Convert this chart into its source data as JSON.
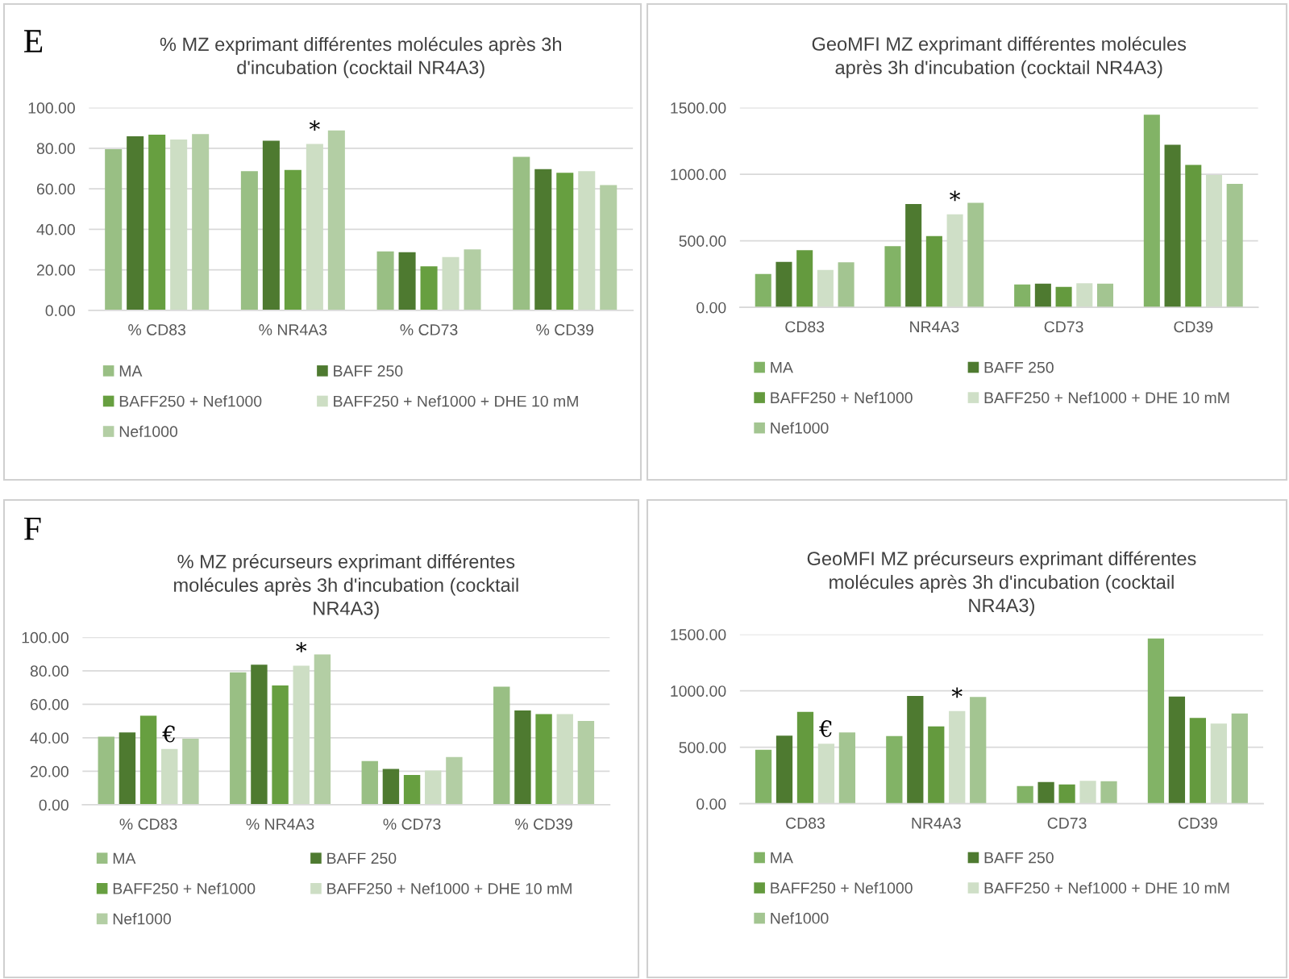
{
  "chart_data": [
    {
      "type": "bar",
      "title": "% MZ exprimant différentes molécules après 3h\nd'incubation (cocktail NR4A3)",
      "categories": [
        "% CD83",
        "% NR4A3",
        "% CD73",
        "% CD39"
      ],
      "series": [
        {
          "name": "MA",
          "color": "#99bf84",
          "values": [
            79.5,
            68.7,
            29.1,
            75.7
          ]
        },
        {
          "name": "BAFF 250",
          "color": "#4e7a30",
          "values": [
            85.9,
            83.7,
            28.7,
            69.7
          ]
        },
        {
          "name": "BAFF250 + Nef1000",
          "color": "#679f40",
          "values": [
            86.7,
            69.3,
            21.7,
            67.9
          ]
        },
        {
          "name": "BAFF250 + Nef1000 + DHE 10 mM",
          "color": "#cddec4",
          "values": [
            84.3,
            82.1,
            26.3,
            68.7
          ]
        },
        {
          "name": "Nef1000",
          "color": "#b3cea4",
          "values": [
            87.0,
            88.8,
            30.1,
            61.8
          ]
        }
      ],
      "ylim": [
        0,
        100
      ],
      "yticks": [
        {
          "value": 0,
          "label": "0.00"
        },
        {
          "value": 20,
          "label": "20.00"
        },
        {
          "value": 40,
          "label": "40.00"
        },
        {
          "value": 60,
          "label": "60.00"
        },
        {
          "value": 80,
          "label": "80.00"
        },
        {
          "value": 100,
          "label": "100.00"
        }
      ],
      "grid": "y",
      "legend": "bottom",
      "annotations": [
        "E",
        "*"
      ]
    },
    {
      "type": "bar",
      "title": "GeoMFI MZ exprimant différentes molécules\naprès 3h d'incubation (cocktail NR4A3)",
      "categories": [
        "CD83",
        "NR4A3",
        "CD73",
        "CD39"
      ],
      "series": [
        {
          "name": "MA",
          "color": "#82b366",
          "values": [
            251,
            460,
            172,
            1448
          ]
        },
        {
          "name": "BAFF 250",
          "color": "#4e7a30",
          "values": [
            342,
            777,
            178,
            1222
          ]
        },
        {
          "name": "BAFF250 + Nef1000",
          "color": "#649a3e",
          "values": [
            429,
            535,
            154,
            1070
          ]
        },
        {
          "name": "BAFF250 + Nef1000 + DHE 10 mM",
          "color": "#cfdfc7",
          "values": [
            281,
            699,
            181,
            995
          ]
        },
        {
          "name": "Nef1000",
          "color": "#a3c591",
          "values": [
            339,
            786,
            178,
            928
          ]
        }
      ],
      "ylim": [
        0,
        1500
      ],
      "yticks": [
        {
          "value": 0,
          "label": "0.00"
        },
        {
          "value": 500,
          "label": "500.00"
        },
        {
          "value": 1000,
          "label": "1000.00"
        },
        {
          "value": 1500,
          "label": "1500.00"
        }
      ],
      "grid": "y",
      "legend": "bottom",
      "annotations": [
        "*"
      ]
    },
    {
      "type": "bar",
      "title": "% MZ précurseurs exprimant différentes\nmolécules après 3h d'incubation (cocktail\nNR4A3)",
      "categories": [
        "% CD83",
        "% NR4A3",
        "% CD73",
        "% CD39"
      ],
      "series": [
        {
          "name": "MA",
          "color": "#99bf84",
          "values": [
            40.6,
            79.1,
            26.1,
            70.5
          ]
        },
        {
          "name": "BAFF 250",
          "color": "#4e7a30",
          "values": [
            43.2,
            83.6,
            21.4,
            56.3
          ]
        },
        {
          "name": "BAFF250 + Nef1000",
          "color": "#679f40",
          "values": [
            53.2,
            71.3,
            17.8,
            54.2
          ]
        },
        {
          "name": "BAFF250 + Nef1000 + DHE 10 mM",
          "color": "#cddec4",
          "values": [
            33.3,
            83.1,
            20.4,
            54.2
          ]
        },
        {
          "name": "Nef1000",
          "color": "#b3cea4",
          "values": [
            39.4,
            89.8,
            28.5,
            50.1
          ]
        }
      ],
      "ylim": [
        0,
        100
      ],
      "yticks": [
        {
          "value": 0,
          "label": "0.00"
        },
        {
          "value": 20,
          "label": "20.00"
        },
        {
          "value": 40,
          "label": "40.00"
        },
        {
          "value": 60,
          "label": "60.00"
        },
        {
          "value": 80,
          "label": "80.00"
        },
        {
          "value": 100,
          "label": "100.00"
        }
      ],
      "grid": "y",
      "legend": "bottom",
      "annotations": [
        "F",
        "€",
        "*"
      ]
    },
    {
      "type": "bar",
      "title": "GeoMFI MZ précurseurs exprimant différentes\nmolécules après 3h d'incubation (cocktail\nNR4A3)",
      "categories": [
        "CD83",
        "NR4A3",
        "CD73",
        "CD39"
      ],
      "series": [
        {
          "name": "MA",
          "color": "#82b366",
          "values": [
            479,
            600,
            157,
            1464
          ]
        },
        {
          "name": "BAFF 250",
          "color": "#4e7a30",
          "values": [
            604,
            954,
            193,
            950
          ]
        },
        {
          "name": "BAFF250 + Nef1000",
          "color": "#649a3e",
          "values": [
            814,
            686,
            171,
            761
          ]
        },
        {
          "name": "BAFF250 + Nef1000 + DHE 10 mM",
          "color": "#cfdfc7",
          "values": [
            532,
            821,
            204,
            711
          ]
        },
        {
          "name": "Nef1000",
          "color": "#a3c591",
          "values": [
            632,
            946,
            200,
            800
          ]
        }
      ],
      "ylim": [
        0,
        1500
      ],
      "yticks": [
        {
          "value": 0,
          "label": "0.00"
        },
        {
          "value": 500,
          "label": "500.00"
        },
        {
          "value": 1000,
          "label": "1000.00"
        },
        {
          "value": 1500,
          "label": "1500.00"
        }
      ],
      "grid": "y",
      "legend": "bottom",
      "annotations": [
        "€",
        "*"
      ]
    }
  ]
}
